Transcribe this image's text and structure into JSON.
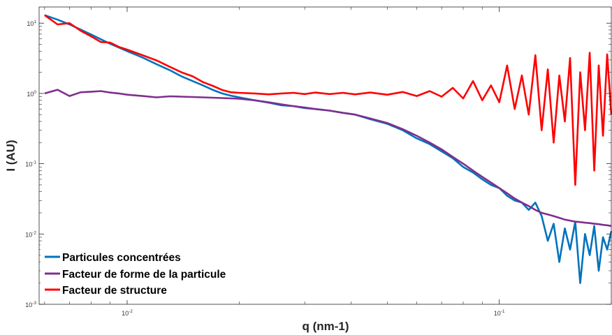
{
  "chart_data": {
    "type": "line",
    "title": "",
    "xlabel": "q (nm-1)",
    "ylabel": "I (AU)",
    "x_scale": "log",
    "y_scale": "log",
    "xlim": [
      0.0058,
      0.2
    ],
    "ylim": [
      0.001,
      17
    ],
    "x_ticks": [
      {
        "value": 0.01,
        "label": "10",
        "exp": "-2"
      },
      {
        "value": 0.1,
        "label": "10",
        "exp": "-1"
      }
    ],
    "y_ticks": [
      {
        "value": 0.001,
        "label": "10",
        "exp": "-3"
      },
      {
        "value": 0.01,
        "label": "10",
        "exp": "-2"
      },
      {
        "value": 0.1,
        "label": "10",
        "exp": "-1"
      },
      {
        "value": 1,
        "label": "10",
        "exp": "0"
      },
      {
        "value": 10,
        "label": "10",
        "exp": "1"
      }
    ],
    "grid": false,
    "legend_position": "bottom-left",
    "series": [
      {
        "name": "Particules concentrées",
        "color": "#0072bd",
        "x": [
          0.006,
          0.0065,
          0.007,
          0.0075,
          0.008,
          0.0085,
          0.009,
          0.0095,
          0.01,
          0.011,
          0.012,
          0.013,
          0.014,
          0.015,
          0.016,
          0.017,
          0.018,
          0.019,
          0.02,
          0.022,
          0.024,
          0.026,
          0.028,
          0.03,
          0.032,
          0.035,
          0.038,
          0.041,
          0.045,
          0.05,
          0.055,
          0.06,
          0.065,
          0.07,
          0.075,
          0.08,
          0.085,
          0.09,
          0.095,
          0.1,
          0.105,
          0.11,
          0.115,
          0.12,
          0.125,
          0.13,
          0.135,
          0.14,
          0.145,
          0.15,
          0.155,
          0.16,
          0.165,
          0.17,
          0.175,
          0.18,
          0.185,
          0.19,
          0.195,
          0.2
        ],
        "y": [
          13,
          11.2,
          9.6,
          8.1,
          6.9,
          5.9,
          5.1,
          4.5,
          4.0,
          3.25,
          2.6,
          2.15,
          1.75,
          1.5,
          1.3,
          1.12,
          1.0,
          0.93,
          0.88,
          0.8,
          0.74,
          0.68,
          0.66,
          0.62,
          0.6,
          0.57,
          0.53,
          0.5,
          0.43,
          0.37,
          0.3,
          0.23,
          0.19,
          0.15,
          0.12,
          0.09,
          0.075,
          0.06,
          0.05,
          0.045,
          0.035,
          0.03,
          0.028,
          0.022,
          0.028,
          0.018,
          0.008,
          0.014,
          0.004,
          0.012,
          0.006,
          0.015,
          0.002,
          0.01,
          0.005,
          0.013,
          0.003,
          0.009,
          0.006,
          0.011
        ]
      },
      {
        "name": "Facteur de forme de la particule",
        "color": "#7e2f8e",
        "x": [
          0.006,
          0.0065,
          0.007,
          0.0075,
          0.008,
          0.0085,
          0.009,
          0.0095,
          0.01,
          0.011,
          0.012,
          0.013,
          0.014,
          0.015,
          0.016,
          0.017,
          0.018,
          0.019,
          0.02,
          0.022,
          0.024,
          0.026,
          0.028,
          0.03,
          0.032,
          0.035,
          0.038,
          0.041,
          0.045,
          0.05,
          0.055,
          0.06,
          0.065,
          0.07,
          0.075,
          0.08,
          0.085,
          0.09,
          0.095,
          0.1,
          0.105,
          0.11,
          0.115,
          0.12,
          0.125,
          0.13,
          0.135,
          0.14,
          0.145,
          0.15,
          0.155,
          0.16,
          0.165,
          0.17,
          0.175,
          0.18,
          0.185,
          0.19,
          0.195,
          0.2
        ],
        "y": [
          1.0,
          1.13,
          0.92,
          1.04,
          1.06,
          1.08,
          1.03,
          1.0,
          0.96,
          0.92,
          0.88,
          0.91,
          0.9,
          0.89,
          0.88,
          0.87,
          0.86,
          0.85,
          0.84,
          0.8,
          0.75,
          0.7,
          0.66,
          0.63,
          0.6,
          0.57,
          0.53,
          0.5,
          0.44,
          0.38,
          0.31,
          0.25,
          0.2,
          0.16,
          0.125,
          0.1,
          0.08,
          0.065,
          0.054,
          0.045,
          0.038,
          0.032,
          0.028,
          0.025,
          0.022,
          0.02,
          0.019,
          0.018,
          0.017,
          0.016,
          0.0155,
          0.015,
          0.0148,
          0.0145,
          0.0143,
          0.014,
          0.0138,
          0.0135,
          0.0133,
          0.013
        ]
      },
      {
        "name": "Facteur de structure",
        "color": "#ff0000",
        "x": [
          0.006,
          0.0065,
          0.007,
          0.0075,
          0.008,
          0.0085,
          0.009,
          0.0095,
          0.01,
          0.011,
          0.012,
          0.013,
          0.014,
          0.015,
          0.016,
          0.017,
          0.018,
          0.019,
          0.02,
          0.022,
          0.024,
          0.026,
          0.028,
          0.03,
          0.032,
          0.035,
          0.038,
          0.041,
          0.045,
          0.05,
          0.055,
          0.06,
          0.065,
          0.07,
          0.075,
          0.08,
          0.085,
          0.09,
          0.095,
          0.1,
          0.105,
          0.11,
          0.115,
          0.12,
          0.125,
          0.13,
          0.135,
          0.14,
          0.145,
          0.15,
          0.155,
          0.16,
          0.165,
          0.17,
          0.175,
          0.18,
          0.185,
          0.19,
          0.195,
          0.2
        ],
        "y": [
          13,
          9.6,
          10,
          7.8,
          6.5,
          5.4,
          5.3,
          4.6,
          4.2,
          3.5,
          2.95,
          2.4,
          2.0,
          1.75,
          1.45,
          1.28,
          1.12,
          1.04,
          1.02,
          1.0,
          0.97,
          1.0,
          1.02,
          0.98,
          1.03,
          0.98,
          1.02,
          0.97,
          1.03,
          0.96,
          1.05,
          0.92,
          1.08,
          0.9,
          1.2,
          0.85,
          1.5,
          0.8,
          1.3,
          0.75,
          2.5,
          0.6,
          1.8,
          0.5,
          3.5,
          0.3,
          2.2,
          0.2,
          1.8,
          0.4,
          3.2,
          0.05,
          2.0,
          0.3,
          3.8,
          0.08,
          2.5,
          0.25,
          3.6,
          0.5
        ]
      }
    ]
  }
}
